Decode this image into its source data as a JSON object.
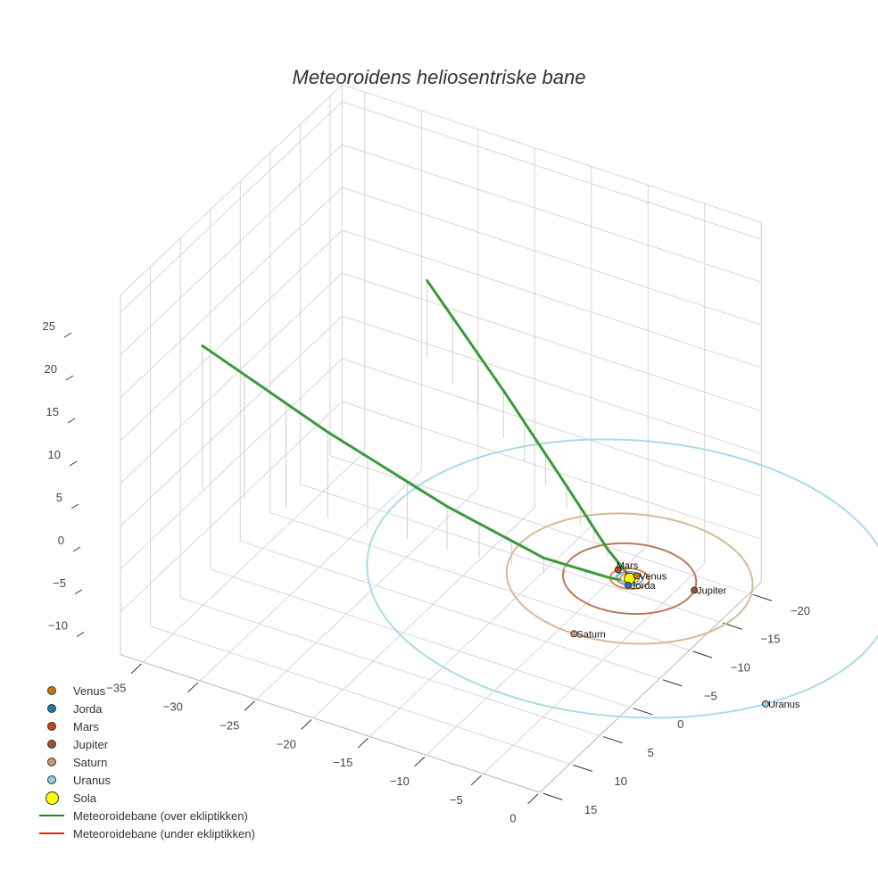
{
  "chart_data": {
    "type": "scatter3d",
    "title": "Meteoroidens heliosentriske bane",
    "axes": {
      "x": {
        "range": [
          -37,
          0
        ],
        "ticks": [
          -35,
          -30,
          -25,
          -20,
          -15,
          -10,
          -5,
          0
        ]
      },
      "y": {
        "range": [
          -22,
          15
        ],
        "ticks": [
          15,
          10,
          5,
          0,
          -5,
          -10,
          -15,
          -20
        ]
      },
      "z": {
        "range": [
          -12,
          27
        ],
        "ticks": [
          -10,
          -5,
          0,
          5,
          10,
          15,
          20,
          25
        ]
      }
    },
    "grid": true,
    "legend_position": "bottom-left",
    "sun": {
      "name": "Sola",
      "pos": [
        0,
        0,
        0
      ],
      "color": "#ffff00"
    },
    "planets": [
      {
        "name": "Venus",
        "radius_au": 0.72,
        "angle_deg": -67,
        "color": "#c8780f"
      },
      {
        "name": "Jorda",
        "radius_au": 1.0,
        "angle_deg": 69,
        "color": "#1f77b4"
      },
      {
        "name": "Mars",
        "radius_au": 1.52,
        "angle_deg": 206,
        "color": "#cc4216"
      },
      {
        "name": "Jupiter",
        "radius_au": 5.2,
        "angle_deg": -14,
        "color": "#a0522d"
      },
      {
        "name": "Saturn",
        "radius_au": 9.6,
        "angle_deg": 89,
        "color": "#c89a70"
      },
      {
        "name": "Uranus",
        "radius_au": 20.5,
        "angle_deg": 31,
        "color": "#8fcfe0"
      }
    ],
    "orbit_colors": {
      "Venus": "#d2a060",
      "Jorda": "#5aaed8",
      "Mars": "#d98a5a",
      "Jupiter": "#b87a5a",
      "Saturn": "#d8b898",
      "Uranus": "#aadbe8"
    },
    "trajectories": [
      {
        "name": "Meteoroidebane (over ekliptikken)",
        "color": "#3a9a3a",
        "points": [
          [
            -34.2,
            6.6,
            16.7
          ],
          [
            -24,
            5,
            10
          ],
          [
            -14,
            4,
            5
          ],
          [
            -6,
            3,
            1.8
          ],
          [
            -1.5,
            1,
            0.2
          ],
          [
            -0.6,
            0.6,
            0
          ]
        ]
      },
      {
        "name": "Meteoroidebane (over ekliptikken)",
        "color": "#3a9a3a",
        "points": [
          [
            -28.6,
            -20.3,
            8.9
          ],
          [
            -18,
            -13,
            5.5
          ],
          [
            -9,
            -6.5,
            2.6
          ],
          [
            -3,
            -2,
            0.8
          ],
          [
            -0.6,
            -0.6,
            0.05
          ]
        ]
      },
      {
        "name": "Meteoroidebane (under ekliptikken)",
        "color": "#e82020",
        "points": [
          [
            -0.6,
            -0.6,
            0.05
          ],
          [
            0.1,
            -0.2,
            -0.4
          ]
        ]
      }
    ]
  },
  "legend": [
    {
      "label": "Venus",
      "kind": "dot",
      "color": "#c8780f"
    },
    {
      "label": "Jorda",
      "kind": "dot",
      "color": "#1f77b4"
    },
    {
      "label": "Mars",
      "kind": "dot",
      "color": "#cc4216"
    },
    {
      "label": "Jupiter",
      "kind": "dot",
      "color": "#a0522d"
    },
    {
      "label": "Saturn",
      "kind": "dot",
      "color": "#c89a70"
    },
    {
      "label": "Uranus",
      "kind": "dot",
      "color": "#8fcfe0"
    },
    {
      "label": "Sola",
      "kind": "bigdot",
      "color": "#ffff00"
    },
    {
      "label": "Meteoroidebane (over ekliptikken)",
      "kind": "line",
      "color": "#1a8a1a"
    },
    {
      "label": "Meteoroidebane (under ekliptikken)",
      "kind": "line",
      "color": "#e82020"
    }
  ]
}
